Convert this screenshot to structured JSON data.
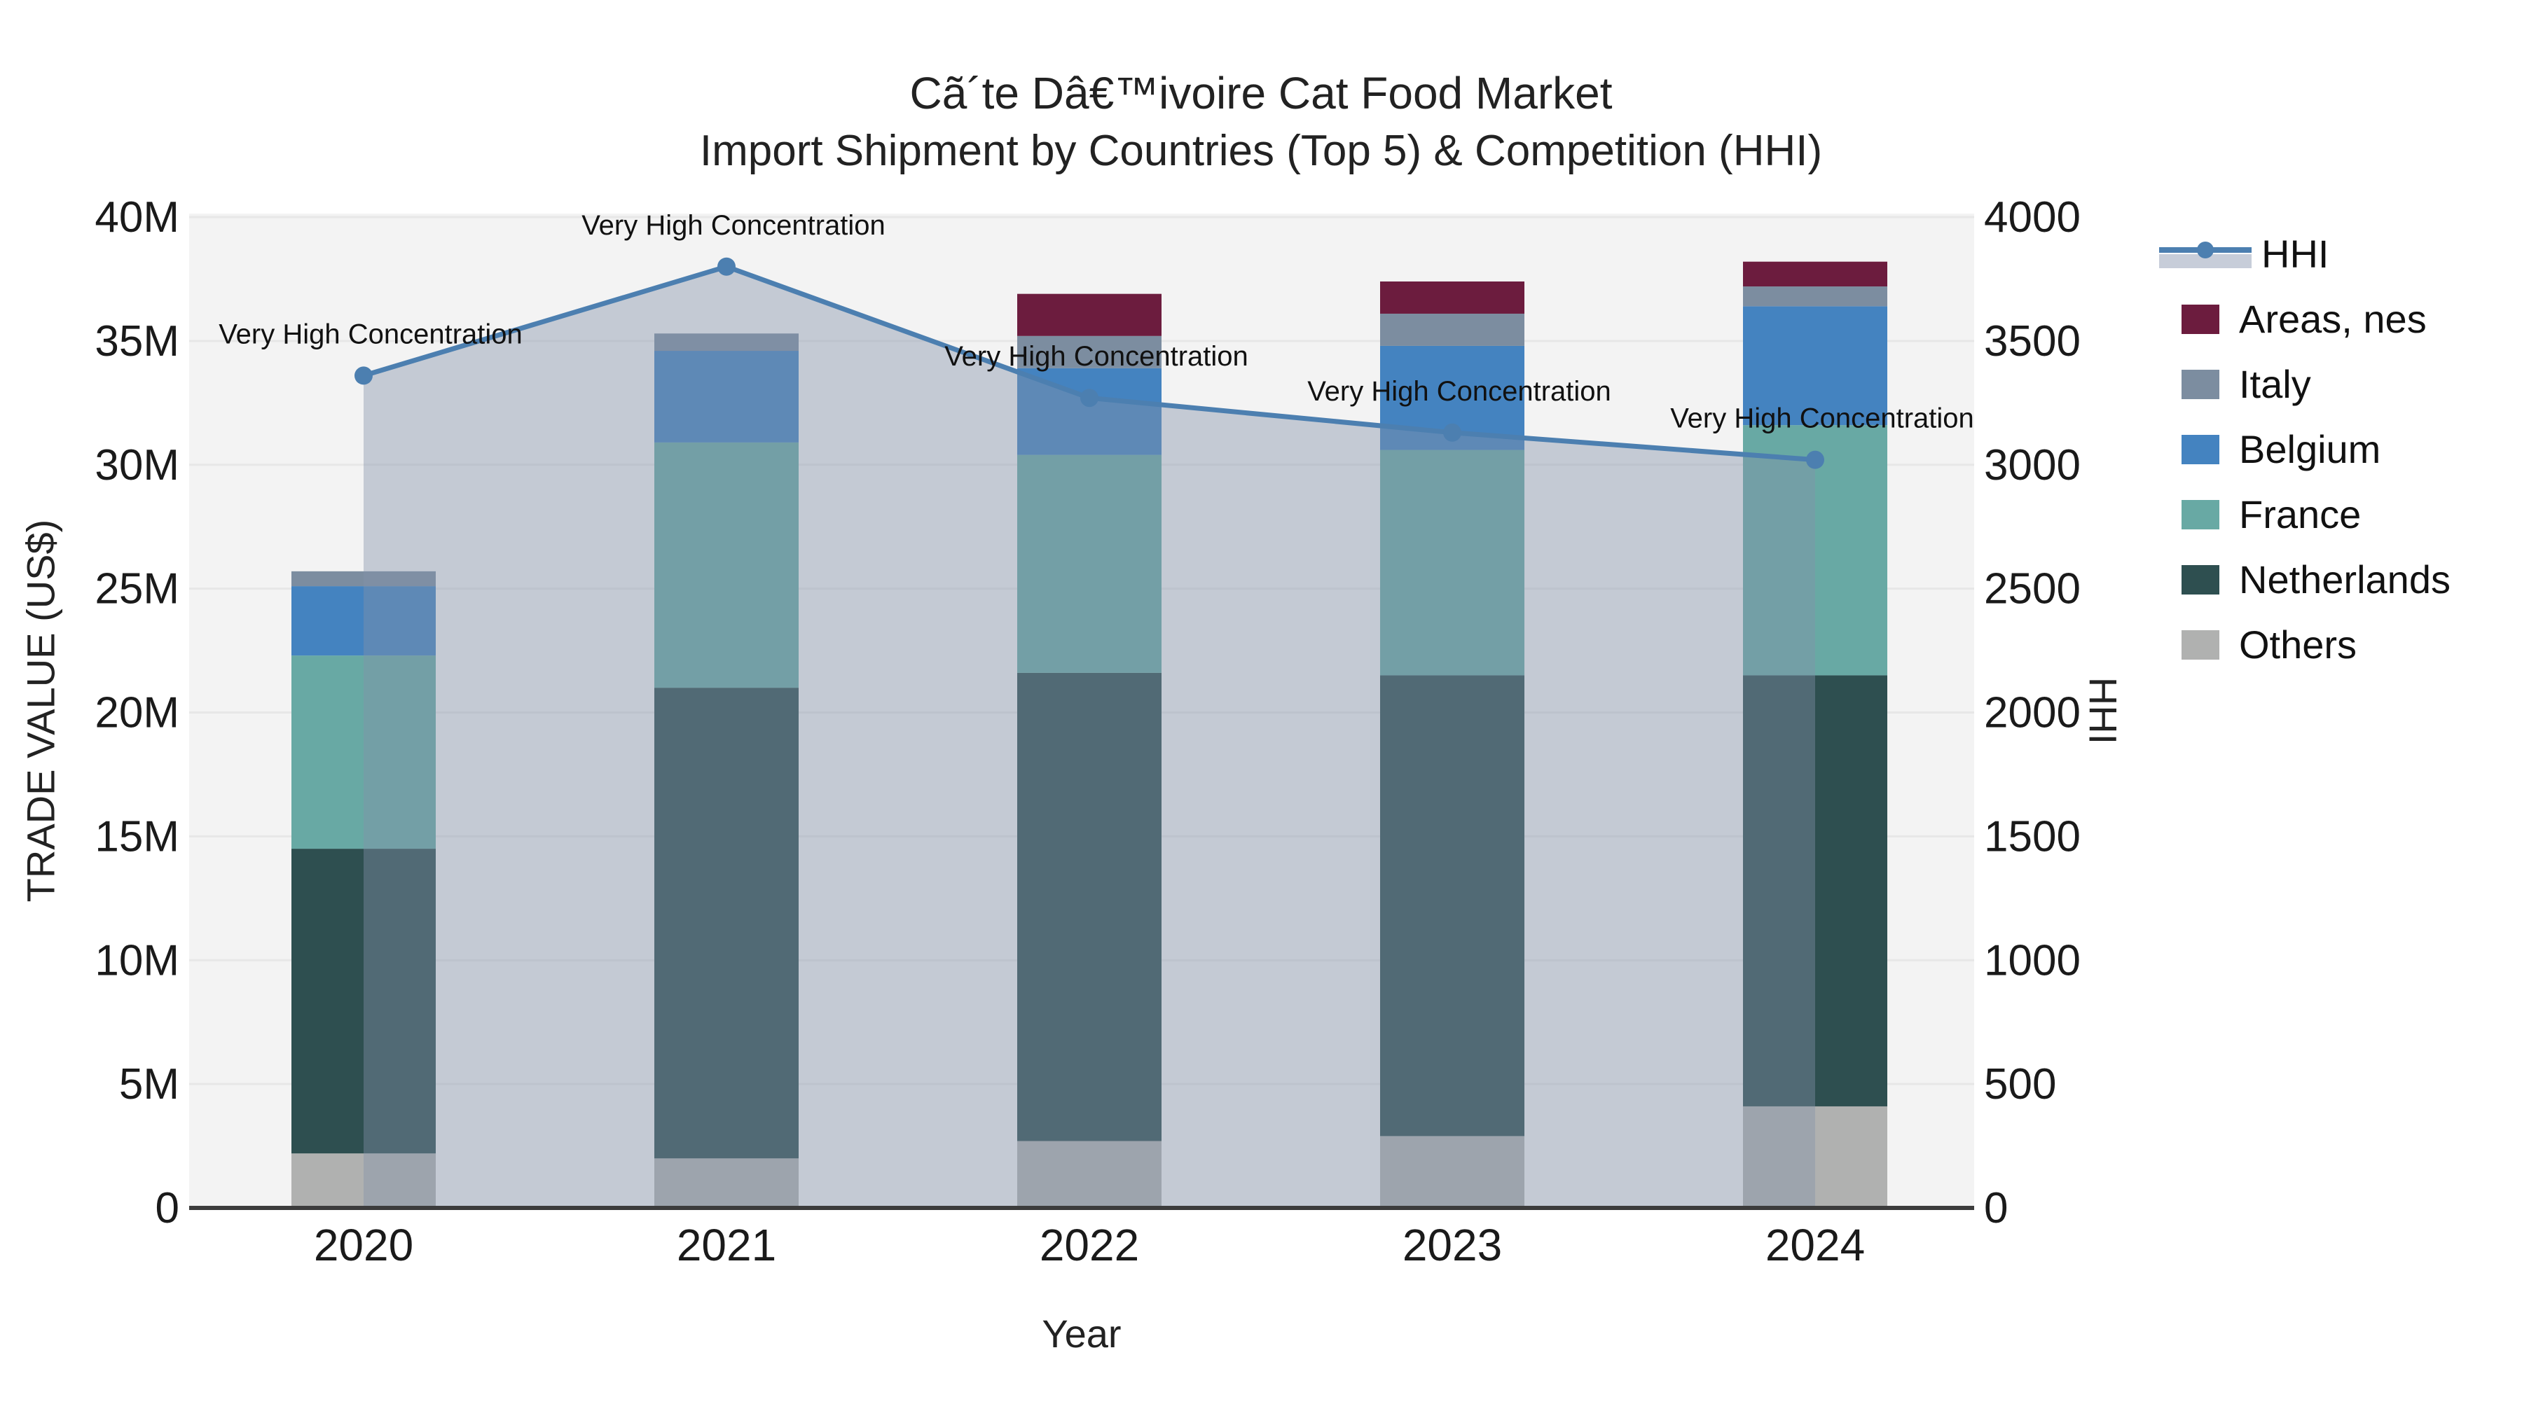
{
  "title": {
    "line1": "Cã´te Dâ€™ivoire Cat Food Market",
    "line2": "Import Shipment by Countries (Top 5) & Competition (HHI)"
  },
  "x_axis": {
    "title": "Year",
    "tick_labels": [
      "2020",
      "2021",
      "2022",
      "2023",
      "2024"
    ]
  },
  "y_axis_left": {
    "title": "TRADE VALUE (US$)",
    "tick_labels": [
      "0",
      "5M",
      "10M",
      "15M",
      "20M",
      "25M",
      "30M",
      "35M",
      "40M"
    ]
  },
  "y_axis_right": {
    "title": "HHI",
    "tick_labels": [
      "0",
      "500",
      "1000",
      "1500",
      "2000",
      "2500",
      "3000",
      "3500",
      "4000"
    ]
  },
  "legend": {
    "items": [
      {
        "label": "HHI",
        "swatch": "line",
        "color": "#4c7fb0"
      },
      {
        "label": "Areas, nes",
        "swatch": "square",
        "color": "#6c1c3e"
      },
      {
        "label": "Italy",
        "swatch": "square",
        "color": "#7c8da0"
      },
      {
        "label": "Belgium",
        "swatch": "square",
        "color": "#4483c0"
      },
      {
        "label": "France",
        "swatch": "square",
        "color": "#68a9a4"
      },
      {
        "label": "Netherlands",
        "swatch": "square",
        "color": "#2e4f50"
      },
      {
        "label": "Others",
        "swatch": "square",
        "color": "#b0b1b0"
      }
    ]
  },
  "chart_data": {
    "type": "combo_stacked_bar_line",
    "title": "Cã´te Dâ€™ivoire Cat Food Market — Import Shipment by Countries (Top 5) & Competition (HHI)",
    "categories": [
      "2020",
      "2021",
      "2022",
      "2023",
      "2024"
    ],
    "bar_value_unit": "million US$",
    "series": [
      {
        "name": "Others",
        "color": "#b0b1b0",
        "values": [
          2.2,
          2.0,
          2.7,
          2.9,
          4.1
        ]
      },
      {
        "name": "Netherlands",
        "color": "#2e4f50",
        "values": [
          12.3,
          19.0,
          18.9,
          18.6,
          17.4
        ]
      },
      {
        "name": "France",
        "color": "#68a9a4",
        "values": [
          7.8,
          9.9,
          8.8,
          9.1,
          10.1
        ]
      },
      {
        "name": "Belgium",
        "color": "#4483c0",
        "values": [
          2.8,
          3.7,
          3.5,
          4.2,
          4.8
        ]
      },
      {
        "name": "Italy",
        "color": "#7c8da0",
        "values": [
          0.6,
          0.7,
          1.3,
          1.3,
          0.8
        ]
      },
      {
        "name": "Areas, nes",
        "color": "#6c1c3e",
        "values": [
          0.0,
          0.0,
          1.7,
          1.3,
          1.0
        ]
      }
    ],
    "bar_totals": [
      25.7,
      35.3,
      36.9,
      37.4,
      38.2
    ],
    "line_series": {
      "name": "HHI",
      "color": "#4c7fb0",
      "fill": "tozeroy",
      "fill_color": "rgba(130,145,170,0.42)",
      "values": [
        3360,
        3800,
        3270,
        3130,
        3020
      ]
    },
    "annotations": [
      {
        "x": "2020",
        "text": "Very High Concentration"
      },
      {
        "x": "2021",
        "text": "Very High Concentration"
      },
      {
        "x": "2022",
        "text": "Very High Concentration"
      },
      {
        "x": "2023",
        "text": "Very High Concentration"
      },
      {
        "x": "2024",
        "text": "Very High Concentration"
      }
    ],
    "xlabel": "Year",
    "ylabel_left": "TRADE VALUE (US$)",
    "ylabel_right": "HHI",
    "ylim_left": [
      0,
      40000000
    ],
    "ylim_right": [
      0,
      4000
    ],
    "grid": true,
    "legend_position": "right",
    "plot_bg_color": "#f3f3f3",
    "grid_color": "#e7e7e7",
    "axis_line_color": "#3c3c3c"
  }
}
